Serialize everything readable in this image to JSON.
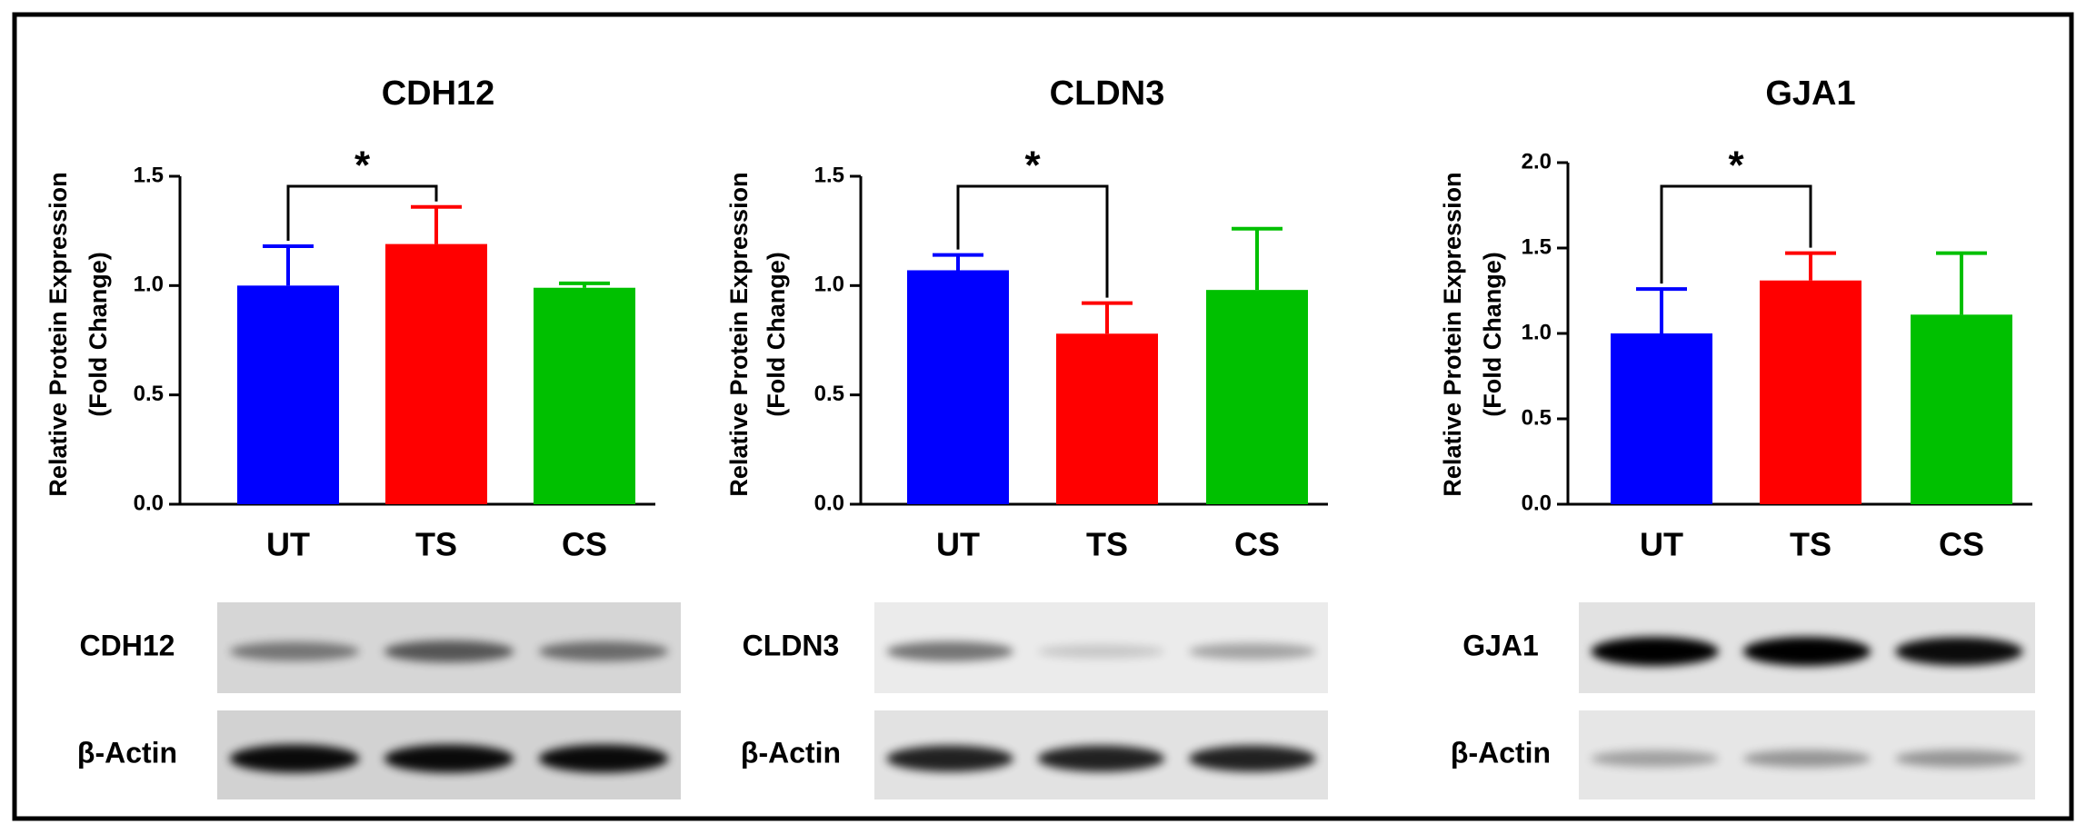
{
  "chart_data": [
    {
      "type": "bar",
      "title": "CDH12",
      "ylabel": [
        "Relative Protein Expression",
        "(Fold Change)"
      ],
      "categories": [
        "UT",
        "TS",
        "CS"
      ],
      "values": [
        1.0,
        1.19,
        0.99
      ],
      "errors": [
        0.18,
        0.17,
        0.02
      ],
      "colors": [
        "#0000ff",
        "#ff0000",
        "#00c000"
      ],
      "ylim": [
        0,
        1.5
      ],
      "yticks": [
        {
          "value": 0,
          "label": "0.0"
        },
        0.5,
        {
          "value": 1,
          "label": "1.0"
        },
        1.5
      ],
      "annotation": "*",
      "blot_labels": [
        "CDH12",
        "β-Actin"
      ]
    },
    {
      "type": "bar",
      "title": "CLDN3",
      "ylabel": [
        "Relative Protein Expression",
        "(Fold Change)"
      ],
      "categories": [
        "UT",
        "TS",
        "CS"
      ],
      "values": [
        1.07,
        0.78,
        0.98
      ],
      "errors": [
        0.07,
        0.14,
        0.28
      ],
      "colors": [
        "#0000ff",
        "#ff0000",
        "#00c000"
      ],
      "ylim": [
        0,
        1.5
      ],
      "yticks": [
        {
          "value": 0,
          "label": "0.0"
        },
        0.5,
        {
          "value": 1,
          "label": "1.0"
        },
        1.5
      ],
      "annotation": "*",
      "blot_labels": [
        "CLDN3",
        "β-Actin"
      ]
    },
    {
      "type": "bar",
      "title": "GJA1",
      "ylabel": [
        "Relative Protein Expression",
        "(Fold Change)"
      ],
      "categories": [
        "UT",
        "TS",
        "CS"
      ],
      "values": [
        1.0,
        1.31,
        1.11
      ],
      "errors": [
        0.26,
        0.16,
        0.36
      ],
      "colors": [
        "#0000ff",
        "#ff0000",
        "#00c000"
      ],
      "ylim": [
        0,
        2
      ],
      "yticks": [
        {
          "value": 0,
          "label": "0.0"
        },
        0.5,
        {
          "value": 1,
          "label": "1.0"
        },
        1.5,
        {
          "value": 2,
          "label": "2.0"
        }
      ],
      "annotation": "*",
      "blot_labels": [
        "GJA1",
        "β-Actin"
      ]
    }
  ]
}
